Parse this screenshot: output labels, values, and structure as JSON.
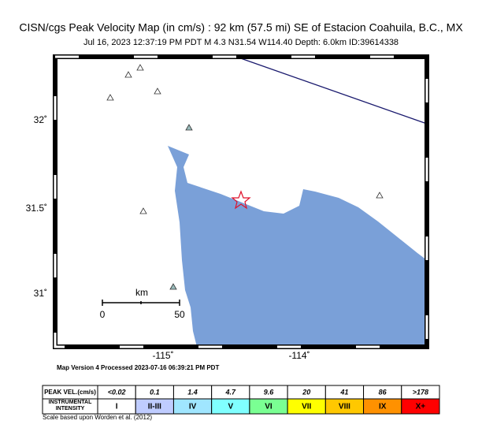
{
  "header": {
    "title": "CISN/cgs Peak Velocity Map (in cm/s) : 92 km (57.5 mi) SE of Estacion Coahuila, B.C., MX",
    "subtitle": "Jul 16, 2023 12:37:19 PM PDT   M 4.3   N31.54 W114.40   Depth: 6.0km   ID:39614338"
  },
  "map": {
    "lat_labels": [
      "32˚",
      "31.5˚",
      "31˚"
    ],
    "lon_labels": [
      "-115˚",
      "-114˚"
    ],
    "scale_bar": {
      "unit": "km",
      "start": "0",
      "end": "50"
    },
    "version_note": "Map Version 4 Processed 2023-07-16 06:39:21 PM PDT"
  },
  "legend": {
    "row_headers": [
      "PEAK VEL.(cm/s)",
      "INSTRUMENTAL INTENSITY"
    ],
    "peak_velocity": [
      "<0.02",
      "0.1",
      "1.4",
      "4.7",
      "9.6",
      "20",
      "41",
      "86",
      ">178"
    ],
    "intensity": [
      "I",
      "II-III",
      "IV",
      "V",
      "VI",
      "VII",
      "VIII",
      "IX",
      "X+"
    ],
    "footnote": "Scale based upon Worden et al. (2012)"
  }
}
